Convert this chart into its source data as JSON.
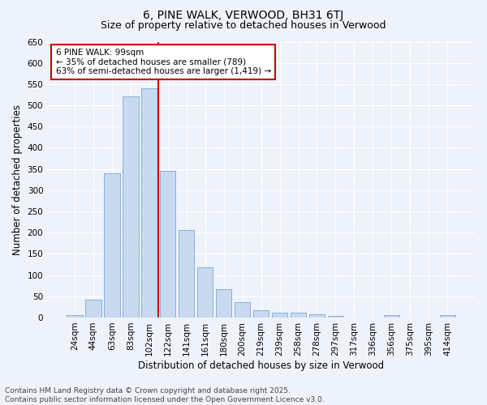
{
  "title": "6, PINE WALK, VERWOOD, BH31 6TJ",
  "subtitle": "Size of property relative to detached houses in Verwood",
  "xlabel": "Distribution of detached houses by size in Verwood",
  "ylabel": "Number of detached properties",
  "bar_color": "#c8d9f0",
  "bar_edge_color": "#8ab0d8",
  "categories": [
    "24sqm",
    "44sqm",
    "63sqm",
    "83sqm",
    "102sqm",
    "122sqm",
    "141sqm",
    "161sqm",
    "180sqm",
    "200sqm",
    "219sqm",
    "239sqm",
    "258sqm",
    "278sqm",
    "297sqm",
    "317sqm",
    "336sqm",
    "356sqm",
    "375sqm",
    "395sqm",
    "414sqm"
  ],
  "values": [
    5,
    42,
    340,
    522,
    540,
    345,
    207,
    118,
    67,
    37,
    18,
    12,
    12,
    8,
    3,
    0,
    0,
    5,
    0,
    0,
    5
  ],
  "ylim": [
    0,
    650
  ],
  "yticks": [
    0,
    50,
    100,
    150,
    200,
    250,
    300,
    350,
    400,
    450,
    500,
    550,
    600,
    650
  ],
  "property_line_x": 4.5,
  "annotation_text": "6 PINE WALK: 99sqm\n← 35% of detached houses are smaller (789)\n63% of semi-detached houses are larger (1,419) →",
  "annotation_box_color": "#ffffff",
  "annotation_border_color": "#cc0000",
  "property_line_color": "#cc0000",
  "footer_line1": "Contains HM Land Registry data © Crown copyright and database right 2025.",
  "footer_line2": "Contains public sector information licensed under the Open Government Licence v3.0.",
  "background_color": "#eef2fb",
  "grid_color": "#ffffff",
  "title_fontsize": 10,
  "subtitle_fontsize": 9,
  "label_fontsize": 8.5,
  "tick_fontsize": 7.5,
  "annotation_fontsize": 7.5,
  "footer_fontsize": 6.5
}
